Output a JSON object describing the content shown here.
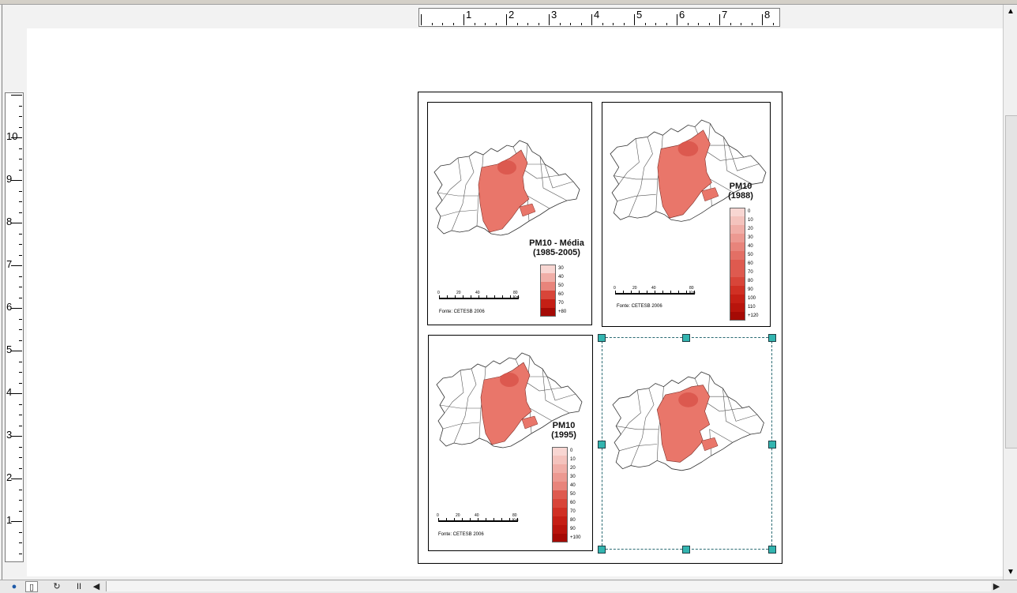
{
  "colors": {
    "ramp": [
      "#f8d6d2",
      "#f4c3bd",
      "#f0aea7",
      "#ec9991",
      "#e8847b",
      "#e36f65",
      "#de5a4f",
      "#d84539",
      "#d03024",
      "#c51f15",
      "#b8140c",
      "#a50a05"
    ],
    "map_fill": "#e9766a",
    "map_dark": "#d85248",
    "selection": "#33b5b0"
  },
  "ruler_h": {
    "labels": [
      "1",
      "2",
      "3",
      "4",
      "5",
      "6",
      "7",
      "8"
    ]
  },
  "ruler_v": {
    "labels": [
      "10",
      "9",
      "8",
      "7",
      "6",
      "5",
      "4",
      "3",
      "2",
      "1"
    ]
  },
  "panels": {
    "media": {
      "title": "PM10 - Média",
      "subtitle": "(1985-2005)",
      "legend": [
        "30",
        "40",
        "50",
        "60",
        "70",
        "+80"
      ],
      "scale_labels": [
        "0",
        "20",
        "40",
        "80 Km"
      ],
      "source": "Fonte: CETESB 2006"
    },
    "y1988": {
      "title": "PM10",
      "subtitle": "(1988)",
      "legend": [
        "0",
        "10",
        "20",
        "30",
        "40",
        "50",
        "60",
        "70",
        "80",
        "90",
        "100",
        "110",
        "+120"
      ],
      "scale_labels": [
        "0",
        "20",
        "40",
        "80 Km"
      ],
      "source": "Fonte: CETESB 2006"
    },
    "y1995": {
      "title": "PM10",
      "subtitle": "(1995)",
      "legend": [
        "0",
        "10",
        "20",
        "30",
        "40",
        "50",
        "60",
        "70",
        "80",
        "90",
        "+100"
      ],
      "scale_labels": [
        "0",
        "20",
        "40",
        "80 Km"
      ],
      "source": "Fonte: CETESB 2006"
    }
  },
  "icons": {
    "globe": "globe-icon",
    "page": "page-view-icon",
    "refresh": "refresh-icon",
    "pause": "pause-icon",
    "left": "scroll-left-icon",
    "right": "scroll-right-icon",
    "up": "scroll-up-icon",
    "down": "scroll-down-icon"
  }
}
